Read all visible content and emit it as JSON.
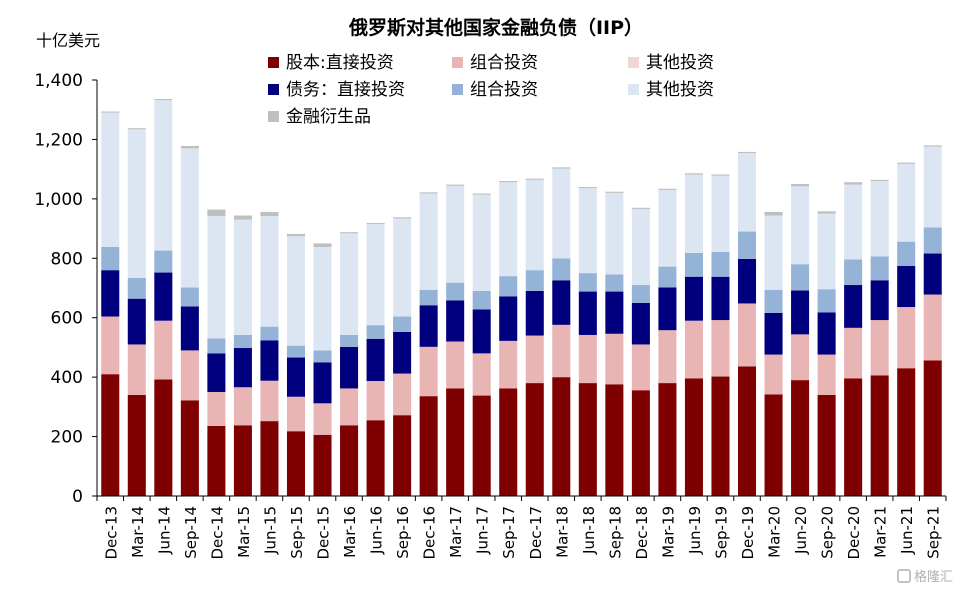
{
  "chart_data": {
    "type": "bar",
    "stacked": true,
    "title": "俄罗斯对其他国家金融负债（IIP）",
    "unit_label": "十亿美元",
    "ylabel": "十亿美元",
    "xlabel": "",
    "ylim": [
      0,
      1400
    ],
    "yticks": [
      0,
      200,
      400,
      600,
      800,
      1000,
      1200,
      1400
    ],
    "ytick_labels": [
      "0",
      "200",
      "400",
      "600",
      "800",
      "1,000",
      "1,200",
      "1,400"
    ],
    "grid": false,
    "legend_position": "top",
    "categories": [
      "Dec-13",
      "Mar-14",
      "Jun-14",
      "Sep-14",
      "Dec-14",
      "Mar-15",
      "Jun-15",
      "Sep-15",
      "Dec-15",
      "Mar-16",
      "Jun-16",
      "Sep-16",
      "Dec-16",
      "Mar-17",
      "Jun-17",
      "Sep-17",
      "Dec-17",
      "Mar-18",
      "Jun-18",
      "Sep-18",
      "Dec-18",
      "Mar-19",
      "Jun-19",
      "Sep-19",
      "Dec-19",
      "Mar-20",
      "Jun-20",
      "Sep-20",
      "Dec-20",
      "Mar-21",
      "Jun-21",
      "Sep-21"
    ],
    "series": [
      {
        "name": "股本:直接投资",
        "color": "#7f0000",
        "values": [
          410,
          340,
          392,
          322,
          236,
          238,
          252,
          218,
          206,
          238,
          255,
          272,
          336,
          362,
          338,
          362,
          380,
          400,
          380,
          376,
          356,
          380,
          396,
          402,
          436,
          342,
          390,
          340,
          396,
          406,
          430,
          456
        ]
      },
      {
        "name": "组合投资",
        "color": "#e8b4b4",
        "values": [
          194,
          170,
          198,
          168,
          114,
          128,
          136,
          116,
          106,
          124,
          132,
          140,
          166,
          158,
          142,
          160,
          160,
          176,
          162,
          170,
          154,
          178,
          194,
          190,
          212,
          134,
          154,
          136,
          170,
          186,
          206,
          222
        ]
      },
      {
        "name": "其他投资",
        "color": "#f2d6d6",
        "values": [
          0,
          0,
          0,
          0,
          0,
          0,
          0,
          0,
          0,
          0,
          0,
          0,
          0,
          0,
          0,
          0,
          0,
          0,
          0,
          0,
          0,
          0,
          0,
          0,
          0,
          0,
          0,
          0,
          0,
          0,
          0,
          0
        ]
      },
      {
        "name": "债务：直接投资",
        "color": "#00007f",
        "values": [
          156,
          154,
          162,
          148,
          130,
          132,
          136,
          132,
          138,
          140,
          142,
          140,
          140,
          138,
          148,
          150,
          150,
          150,
          146,
          142,
          140,
          144,
          148,
          146,
          150,
          140,
          148,
          142,
          144,
          134,
          138,
          138
        ]
      },
      {
        "name": "组合投资",
        "color": "#95b3d7",
        "values": [
          78,
          70,
          74,
          64,
          50,
          44,
          46,
          40,
          40,
          40,
          46,
          52,
          52,
          60,
          62,
          68,
          70,
          74,
          62,
          58,
          60,
          70,
          80,
          84,
          92,
          78,
          88,
          78,
          86,
          80,
          82,
          88
        ]
      },
      {
        "name": "其他投资",
        "color": "#dce6f2",
        "values": [
          452,
          500,
          506,
          468,
          412,
          388,
          372,
          368,
          348,
          342,
          340,
          330,
          324,
          326,
          324,
          316,
          304,
          302,
          286,
          274,
          256,
          258,
          264,
          256,
          264,
          250,
          262,
          254,
          252,
          254,
          262,
          272
        ]
      },
      {
        "name": "金融衍生品",
        "color": "#bfbfbf",
        "values": [
          4,
          4,
          4,
          8,
          22,
          14,
          14,
          8,
          12,
          4,
          4,
          4,
          4,
          4,
          4,
          4,
          4,
          4,
          4,
          4,
          4,
          4,
          4,
          4,
          4,
          12,
          8,
          8,
          8,
          4,
          4,
          4
        ]
      }
    ]
  },
  "watermark": "格隆汇"
}
